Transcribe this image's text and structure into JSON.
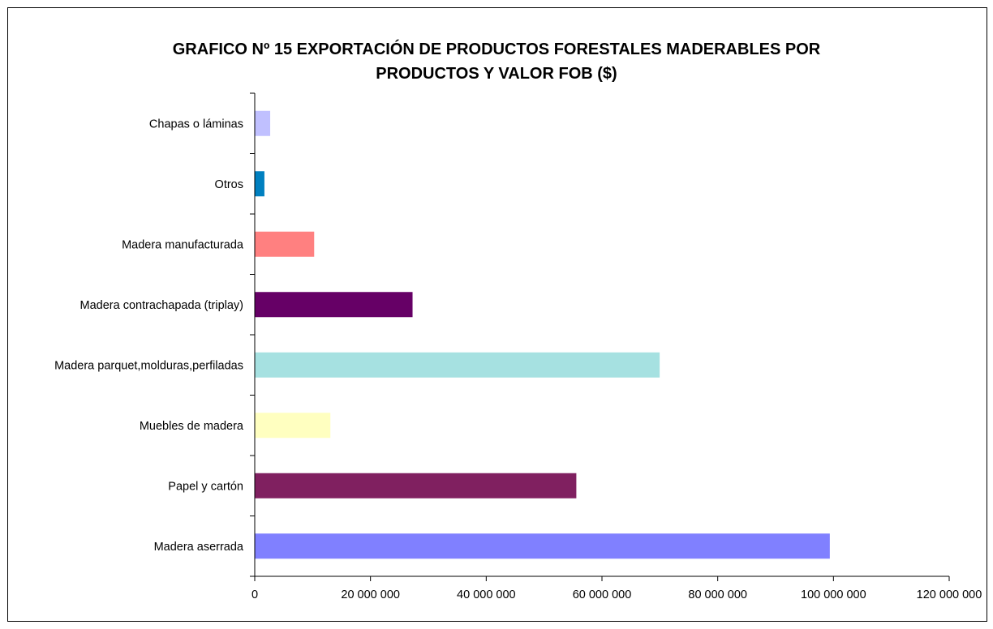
{
  "chart_data": {
    "type": "bar",
    "orientation": "horizontal",
    "title_line1": "GRAFICO Nº 15  EXPORTACIÓN DE PRODUCTOS FORESTALES MADERABLES POR",
    "title_line2": "PRODUCTOS Y VALOR FOB  ($)",
    "categories": [
      "Chapas o láminas",
      "Otros",
      "Madera manufacturada",
      "Madera contrachapada (triplay)",
      "Madera parquet,molduras,perfiladas",
      "Muebles de madera",
      "Papel y cartón",
      "Madera aserrada"
    ],
    "values": [
      2600000,
      1600000,
      10200000,
      27200000,
      69900000,
      13000000,
      55500000,
      99300000
    ],
    "colors": [
      "#c0c0ff",
      "#0080c0",
      "#ff8080",
      "#660066",
      "#a6e1e1",
      "#ffffc0",
      "#802060",
      "#8080ff"
    ],
    "xlim": [
      0,
      120000000
    ],
    "x_ticks": [
      0,
      20000000,
      40000000,
      60000000,
      80000000,
      100000000,
      120000000
    ],
    "x_tick_labels": [
      "0",
      "20 000 000",
      "40 000 000",
      "60 000 000",
      "80 000 000",
      "100 000 000",
      "120 000 000"
    ],
    "grid": false,
    "legend": "none"
  }
}
